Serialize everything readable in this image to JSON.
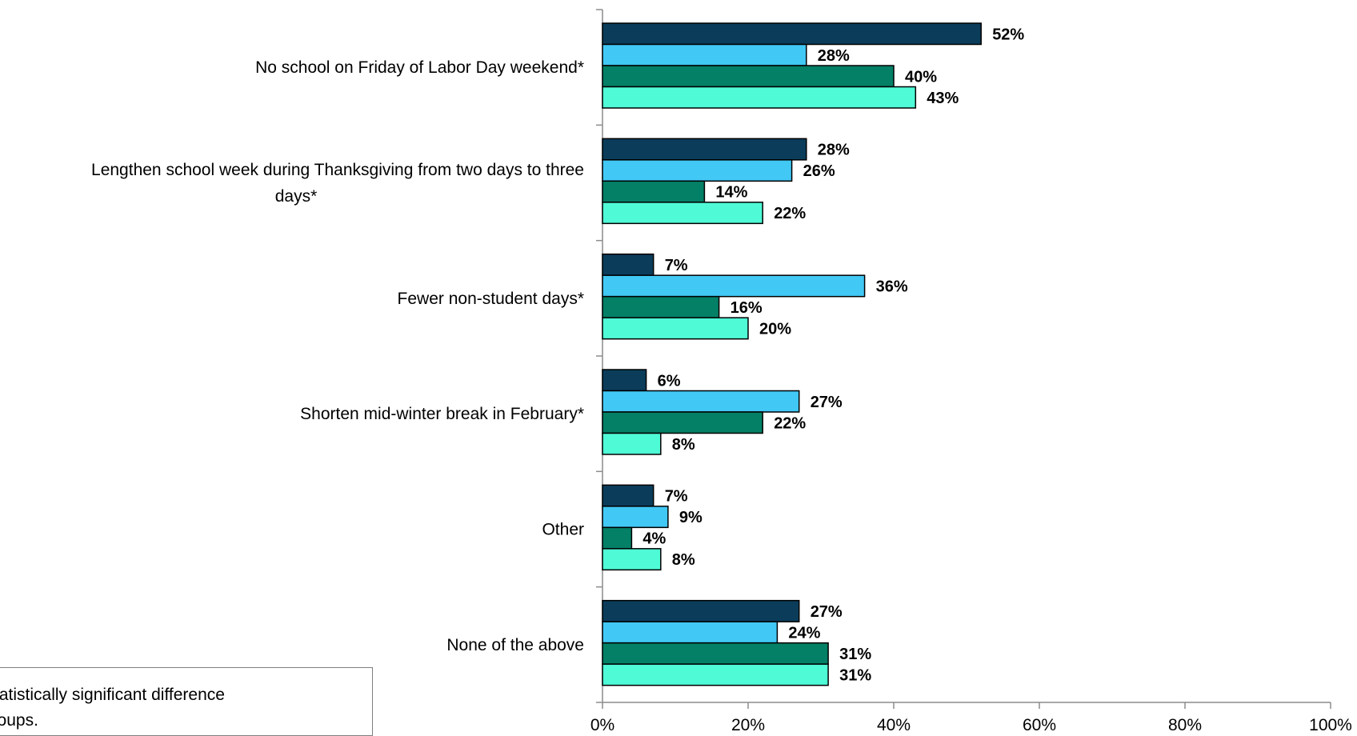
{
  "chart_data": {
    "type": "bar",
    "orientation": "horizontal",
    "categories": [
      "No school on Friday of Labor Day weekend*",
      "Lengthen school week during Thanksgiving from two days to three days*",
      "Fewer non-student days*",
      "Shorten mid-winter break in February*",
      "Other",
      "None of the above"
    ],
    "category_lines": [
      [
        "No school on Friday of Labor Day weekend*"
      ],
      [
        "Lengthen school week during Thanksgiving from two days to three",
        "days*"
      ],
      [
        "Fewer non-student days*"
      ],
      [
        "Shorten mid-winter break in February*"
      ],
      [
        "Other"
      ],
      [
        "None of the above"
      ]
    ],
    "series": [
      {
        "color": "#0b3d5b",
        "values": [
          52,
          28,
          7,
          6,
          7,
          27
        ],
        "labels": [
          "52%",
          "28%",
          "7%",
          "6%",
          "7%",
          "27%"
        ]
      },
      {
        "color": "#41c8f5",
        "values": [
          28,
          26,
          36,
          27,
          9,
          24
        ],
        "labels": [
          "28%",
          "26%",
          "36%",
          "27%",
          "9%",
          "24%"
        ]
      },
      {
        "color": "#038066",
        "values": [
          40,
          14,
          16,
          22,
          4,
          31
        ],
        "labels": [
          "40%",
          "14%",
          "16%",
          "22%",
          "4%",
          "31%"
        ]
      },
      {
        "color": "#4ffbd6",
        "values": [
          43,
          22,
          20,
          8,
          8,
          31
        ],
        "labels": [
          "43%",
          "22%",
          "20%",
          "8%",
          "8%",
          "31%"
        ]
      }
    ],
    "x_ticks": [
      "0%",
      "20%",
      "40%",
      "60%",
      "80%",
      "100%"
    ],
    "xlim": [
      0,
      100
    ],
    "xlabel": "",
    "ylabel": "",
    "grid": false,
    "legend": false
  },
  "note": {
    "line1": "otes statistically significant difference",
    "line2": "een groups."
  }
}
